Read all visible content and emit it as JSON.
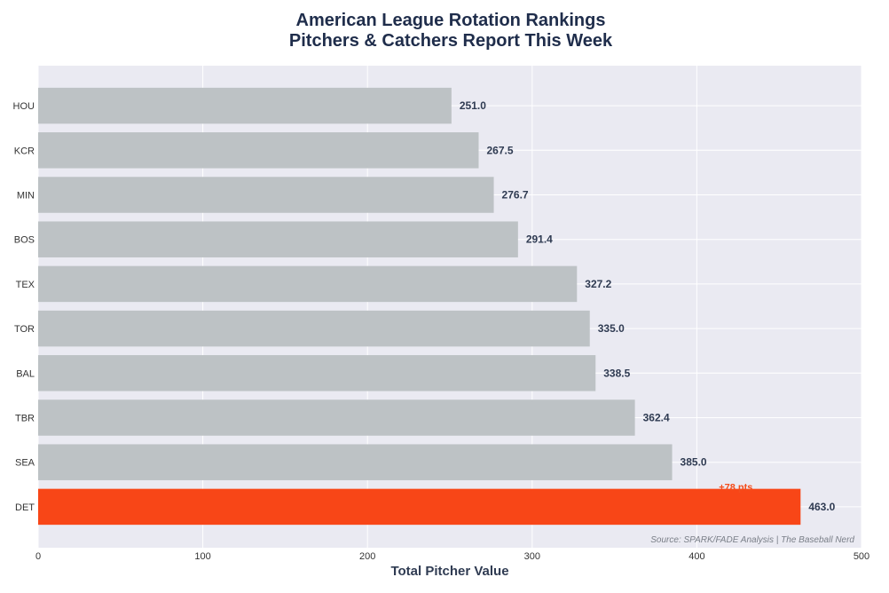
{
  "chart_data": {
    "type": "bar",
    "orientation": "horizontal",
    "title": "American League Rotation Rankings",
    "subtitle": "Pitchers & Catchers Report This Week",
    "xlabel": "Total Pitcher Value",
    "ylabel": "",
    "xlim": [
      0,
      500
    ],
    "xticks": [
      0,
      100,
      200,
      300,
      400,
      500
    ],
    "categories": [
      "HOU",
      "KCR",
      "MIN",
      "BOS",
      "TEX",
      "TOR",
      "BAL",
      "TBR",
      "SEA",
      "DET"
    ],
    "values": [
      251.0,
      267.5,
      276.7,
      291.4,
      327.2,
      335.0,
      338.5,
      362.4,
      385.0,
      463.0
    ],
    "value_labels": [
      "251.0",
      "267.5",
      "276.7",
      "291.4",
      "327.2",
      "335.0",
      "338.5",
      "362.4",
      "385.0",
      "463.0"
    ],
    "highlight": "DET",
    "annotation": "+78 pts",
    "source": "Source: SPARK/FADE Analysis | The Baseball Nerd",
    "grid": true,
    "colors": {
      "bar": "#bdc2c5",
      "highlight": "#f84617",
      "plot_bg": "#eaeaf2",
      "grid": "#ffffff",
      "title": "#1f2d4b"
    }
  }
}
